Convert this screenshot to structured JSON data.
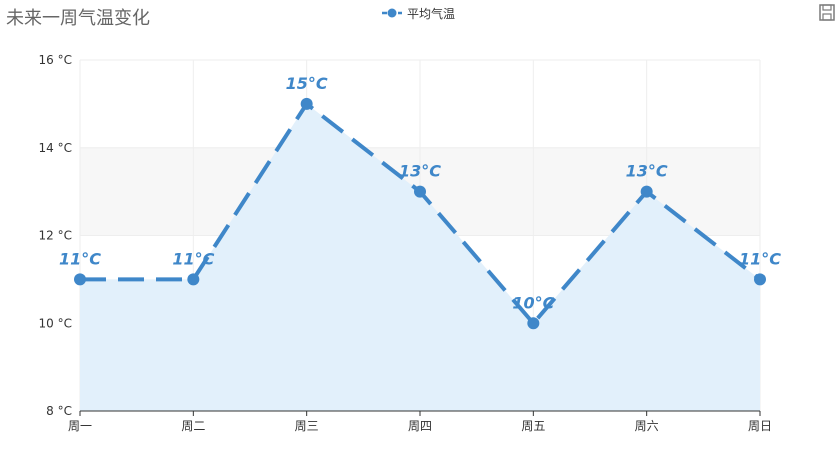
{
  "title": "未来一周气温变化",
  "legend": {
    "label": "平均气温",
    "position": "top-center"
  },
  "toolbar": {
    "save_icon": "save-as-image-icon"
  },
  "colors": {
    "line": "#3f87c9",
    "area": "#e2f0fb",
    "band": "#f7f7f7",
    "grid": "#eeeeee",
    "axis": "#333333"
  },
  "chart_data": {
    "type": "line",
    "categories": [
      "周一",
      "周二",
      "周三",
      "周四",
      "周五",
      "周六",
      "周日"
    ],
    "series": [
      {
        "name": "平均气温",
        "values": [
          11,
          11,
          15,
          13,
          10,
          13,
          11
        ],
        "style": "dashed",
        "area": true
      }
    ],
    "data_labels": [
      "11°C",
      "11°C",
      "15°C",
      "13°C",
      "10°C",
      "13°C",
      "11°C"
    ],
    "ylim": [
      8,
      16
    ],
    "y_ticks": [
      8,
      10,
      12,
      14,
      16
    ],
    "y_tick_labels": [
      "8 °C",
      "10 °C",
      "12 °C",
      "14 °C",
      "16 °C"
    ],
    "grid": true,
    "title": "未来一周气温变化"
  }
}
